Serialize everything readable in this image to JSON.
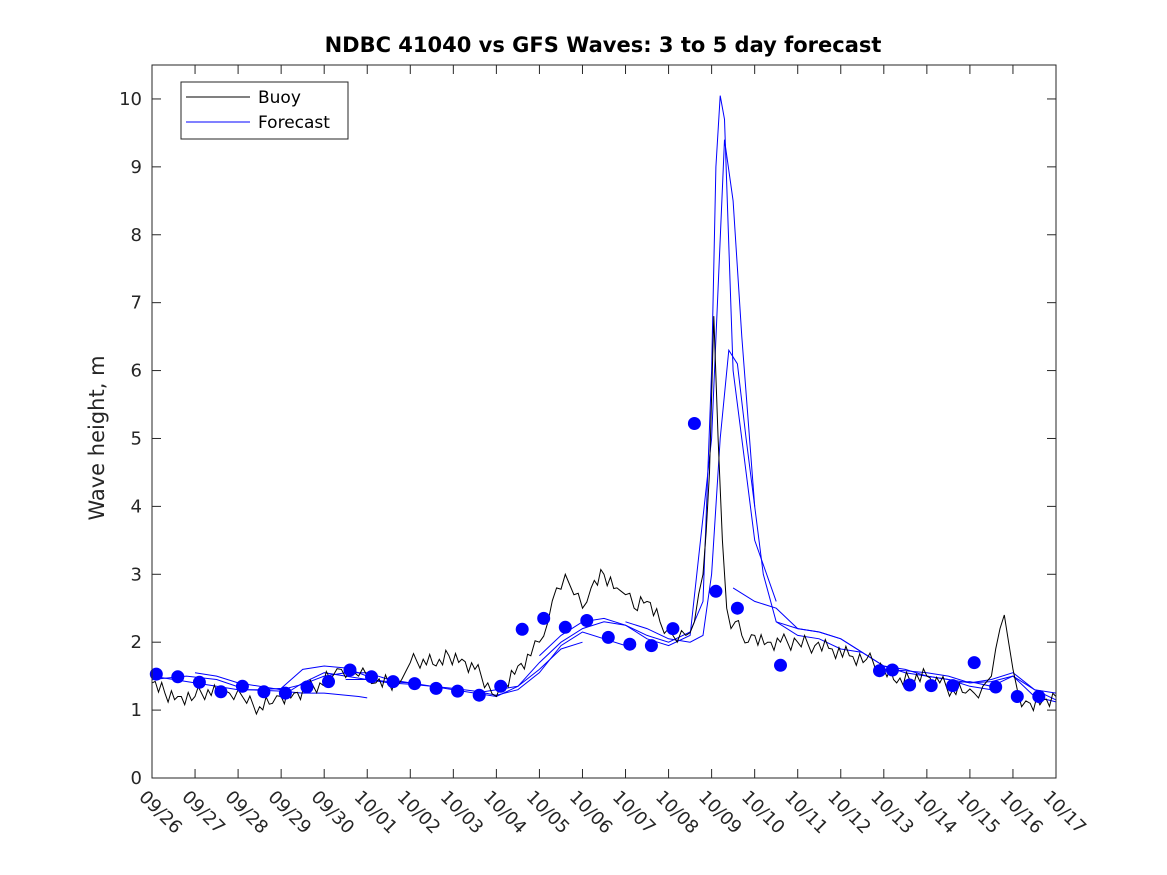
{
  "chart_data": {
    "type": "line",
    "title": "NDBC 41040 vs GFS Waves: 3 to 5 day forecast",
    "xlabel": "",
    "ylabel": "Wave height, m",
    "xlim": [
      0,
      21
    ],
    "ylim": [
      0,
      10.5
    ],
    "yticks": [
      0,
      1,
      2,
      3,
      4,
      5,
      6,
      7,
      8,
      9,
      10
    ],
    "xtick_labels": [
      "09/26",
      "09/27",
      "09/28",
      "09/29",
      "09/30",
      "10/01",
      "10/02",
      "10/03",
      "10/04",
      "10/05",
      "10/06",
      "10/07",
      "10/08",
      "10/09",
      "10/10",
      "10/11",
      "10/12",
      "10/13",
      "10/14",
      "10/15",
      "10/16",
      "10/17"
    ],
    "legend": {
      "location": "top-left",
      "entries": [
        "Buoy",
        "Forecast"
      ]
    },
    "colors": {
      "buoy": "#000000",
      "forecast": "#0000ff"
    },
    "series": [
      {
        "name": "Buoy",
        "x": [
          0,
          0.3,
          0.6,
          1.0,
          1.3,
          1.6,
          1.8,
          2.0,
          2.2,
          2.5,
          2.8,
          3.0,
          3.3,
          3.6,
          3.9,
          4.2,
          4.4,
          4.6,
          4.8,
          5.0,
          5.2,
          5.5,
          5.8,
          6.0,
          6.3,
          6.6,
          6.9,
          7.2,
          7.5,
          7.8,
          8.0,
          8.2,
          8.5,
          8.8,
          9.0,
          9.2,
          9.4,
          9.6,
          9.8,
          10.0,
          10.2,
          10.5,
          10.8,
          11.0,
          11.2,
          11.5,
          11.8,
          12.0,
          12.2,
          12.4,
          12.6,
          12.8,
          12.95,
          13.05,
          13.15,
          13.25,
          13.35,
          13.45,
          13.55,
          13.7,
          13.85,
          14.0,
          14.3,
          14.6,
          15.0,
          15.4,
          15.8,
          16.2,
          16.6,
          17.0,
          17.3,
          17.6,
          18.0,
          18.3,
          18.6,
          18.9,
          19.1,
          19.3,
          19.5,
          19.6,
          19.7,
          19.8,
          19.9,
          20.0,
          20.1,
          20.2,
          20.4,
          20.7,
          21.0
        ],
        "y": [
          1.4,
          1.25,
          1.2,
          1.2,
          1.3,
          1.2,
          1.25,
          1.3,
          1.1,
          1.05,
          1.1,
          1.2,
          1.25,
          1.3,
          1.4,
          1.5,
          1.6,
          1.6,
          1.5,
          1.5,
          1.4,
          1.4,
          1.45,
          1.7,
          1.75,
          1.65,
          1.8,
          1.75,
          1.6,
          1.4,
          1.2,
          1.4,
          1.65,
          1.8,
          2.0,
          2.3,
          2.8,
          3.0,
          2.7,
          2.5,
          2.8,
          3.0,
          2.8,
          2.7,
          2.5,
          2.6,
          2.3,
          2.2,
          2.0,
          2.1,
          2.3,
          3.0,
          4.5,
          6.8,
          5.0,
          3.5,
          2.5,
          2.2,
          2.3,
          2.1,
          2.0,
          2.1,
          2.0,
          2.0,
          2.0,
          1.95,
          1.9,
          1.8,
          1.75,
          1.6,
          1.4,
          1.45,
          1.5,
          1.4,
          1.3,
          1.25,
          1.25,
          1.35,
          1.5,
          1.9,
          2.2,
          2.4,
          2.0,
          1.6,
          1.3,
          1.05,
          1.1,
          1.15,
          1.2
        ]
      }
    ],
    "forecast_lines": [
      {
        "name": "Forecast",
        "x": [
          0,
          0.8,
          1.5,
          2.2,
          3.0,
          3.5,
          4.0,
          4.8,
          5.0
        ],
        "y": [
          1.45,
          1.5,
          1.45,
          1.3,
          1.28,
          1.25,
          1.25,
          1.2,
          1.18
        ]
      },
      {
        "name": "Forecast",
        "x": [
          0,
          0.5,
          1.0,
          1.5,
          2.0,
          2.5,
          3.0,
          3.5,
          4.0,
          4.5,
          5.0
        ],
        "y": [
          1.5,
          1.45,
          1.4,
          1.35,
          1.3,
          1.3,
          1.32,
          1.6,
          1.65,
          1.62,
          1.5
        ]
      },
      {
        "name": "Forecast",
        "x": [
          1.0,
          1.5,
          2.0,
          2.5,
          3.0,
          3.5,
          4.0,
          4.5,
          5.0,
          5.5,
          6.0
        ],
        "y": [
          1.55,
          1.5,
          1.4,
          1.35,
          1.3,
          1.38,
          1.5,
          1.55,
          1.55,
          1.45,
          1.4
        ]
      },
      {
        "name": "Forecast",
        "x": [
          3.0,
          3.5,
          4.0,
          4.5,
          5.0,
          5.5,
          6.0,
          6.5,
          7.0,
          7.5,
          8.0,
          8.5,
          9.0,
          9.5,
          10.0
        ],
        "y": [
          1.2,
          1.4,
          1.55,
          1.5,
          1.45,
          1.4,
          1.38,
          1.35,
          1.3,
          1.25,
          1.3,
          1.35,
          1.6,
          1.9,
          2.0
        ]
      },
      {
        "name": "Forecast",
        "x": [
          4.5,
          5.0,
          5.5,
          6.0,
          6.5,
          7.0,
          7.5,
          8.0,
          8.5,
          9.0,
          9.5,
          10.0,
          10.5,
          11.0
        ],
        "y": [
          1.45,
          1.45,
          1.42,
          1.4,
          1.35,
          1.32,
          1.28,
          1.22,
          1.3,
          1.55,
          1.95,
          2.15,
          2.05,
          1.95
        ]
      },
      {
        "name": "Forecast",
        "x": [
          7.5,
          8.0,
          8.5,
          9.0,
          9.5,
          10.0,
          10.5,
          11.0,
          11.5,
          12.0,
          12.5,
          13.0,
          13.3,
          13.5,
          13.7,
          14.0
        ],
        "y": [
          1.25,
          1.2,
          1.35,
          1.7,
          2.0,
          2.2,
          2.3,
          2.25,
          2.05,
          1.95,
          2.1,
          5.0,
          9.4,
          8.5,
          6.5,
          4.0
        ]
      },
      {
        "name": "Forecast",
        "x": [
          9.0,
          9.5,
          10.0,
          10.5,
          11.0,
          11.5,
          12.0,
          12.5,
          12.8,
          13.0,
          13.1,
          13.2,
          13.3,
          13.5,
          13.8,
          14.0,
          14.5
        ],
        "y": [
          1.8,
          2.1,
          2.3,
          2.35,
          2.25,
          2.1,
          2.0,
          2.15,
          2.6,
          6.0,
          9.0,
          10.05,
          9.7,
          6.0,
          4.5,
          3.5,
          2.6
        ]
      },
      {
        "name": "Forecast",
        "x": [
          11.0,
          11.5,
          12.0,
          12.5,
          12.8,
          13.0,
          13.2,
          13.4,
          13.6,
          13.8,
          14.0,
          14.2,
          14.5,
          15.0,
          15.5,
          16.0,
          16.5
        ],
        "y": [
          2.3,
          2.2,
          2.05,
          2.0,
          2.1,
          3.0,
          5.0,
          6.3,
          6.1,
          5.0,
          4.0,
          3.0,
          2.3,
          2.1,
          2.05,
          1.9,
          1.85
        ]
      },
      {
        "name": "Forecast",
        "x": [
          13.5,
          14.0,
          14.5,
          15.0,
          15.5,
          16.0,
          16.5,
          17.0,
          17.5,
          18.0,
          18.5,
          19.0,
          19.5
        ],
        "y": [
          2.8,
          2.6,
          2.5,
          2.2,
          2.15,
          2.05,
          1.85,
          1.65,
          1.55,
          1.5,
          1.45,
          1.35,
          1.3
        ]
      },
      {
        "name": "Forecast",
        "x": [
          14.5,
          15.0,
          15.5,
          16.0,
          16.5,
          17.0,
          17.5,
          18.0,
          18.5,
          19.0,
          19.5,
          20.0,
          20.5,
          21.0
        ],
        "y": [
          2.3,
          2.2,
          2.15,
          2.05,
          1.85,
          1.65,
          1.6,
          1.5,
          1.45,
          1.4,
          1.45,
          1.55,
          1.3,
          1.25
        ]
      },
      {
        "name": "Forecast",
        "x": [
          17.0,
          17.5,
          18.0,
          18.5,
          19.0,
          19.5,
          20.0,
          20.5,
          21.0
        ],
        "y": [
          1.6,
          1.58,
          1.55,
          1.5,
          1.4,
          1.42,
          1.5,
          1.3,
          1.15
        ]
      },
      {
        "name": "Forecast",
        "x": [
          18.5,
          19.0,
          19.5,
          20.0,
          20.5,
          21.0
        ],
        "y": [
          1.4,
          1.42,
          1.35,
          1.5,
          1.2,
          1.12
        ]
      }
    ],
    "forecast_points": {
      "x": [
        0.1,
        0.6,
        1.1,
        1.6,
        2.1,
        2.6,
        3.1,
        3.6,
        4.1,
        4.6,
        5.1,
        5.6,
        6.1,
        6.6,
        7.1,
        7.6,
        8.1,
        8.6,
        9.1,
        9.6,
        10.1,
        10.6,
        11.1,
        11.6,
        12.1,
        12.6,
        13.1,
        13.6,
        14.6,
        16.9,
        17.2,
        17.6,
        18.1,
        18.6,
        19.1,
        19.6,
        20.1,
        20.6
      ],
      "y": [
        1.53,
        1.49,
        1.41,
        1.27,
        1.35,
        1.27,
        1.25,
        1.34,
        1.42,
        1.59,
        1.49,
        1.42,
        1.39,
        1.32,
        1.28,
        1.22,
        1.35,
        2.19,
        2.35,
        2.22,
        2.32,
        2.07,
        1.97,
        1.95,
        2.2,
        5.22,
        2.75,
        2.5,
        1.66,
        1.58,
        1.59,
        1.37,
        1.36,
        1.36,
        1.7,
        1.34,
        1.2,
        1.2
      ]
    }
  }
}
